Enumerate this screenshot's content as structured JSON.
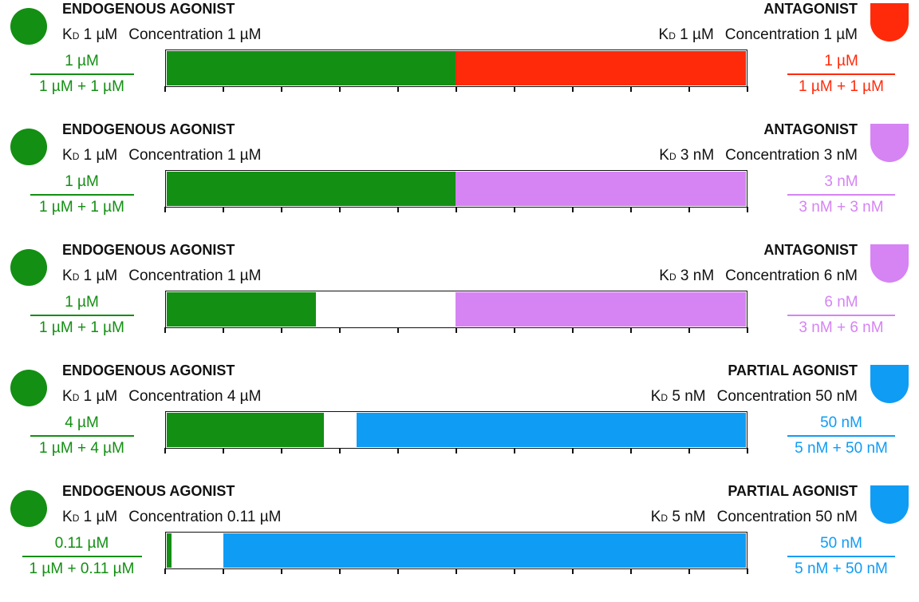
{
  "colors": {
    "agonist": "#138f13",
    "antagonist_red": "#ff2a0a",
    "antagonist_violet": "#d683f4",
    "partial": "#0f9cf5",
    "axis": "#111111"
  },
  "axis_ticks": 10,
  "panels": [
    {
      "left": {
        "title": "ENDOGENOUS AGONIST",
        "kd_prefix": "K",
        "kd_sub": "D",
        "kd_value": "1 µM",
        "concentration": "Concentration 1 µM",
        "frac_num": "1 µM",
        "frac_den": "1 µM + 1 µM",
        "occupancy": 0.5,
        "color": "agonist",
        "icon": "green-circle-icon"
      },
      "right": {
        "title": "ANTAGONIST",
        "kd_prefix": "K",
        "kd_sub": "D",
        "kd_value": "1 µM",
        "concentration": "Concentration 1 µM",
        "frac_num": "1 µM",
        "frac_den": "1 µM + 1 µM",
        "occupancy": 0.5,
        "color": "antagonist_red",
        "icon": "red-shield-icon"
      }
    },
    {
      "left": {
        "title": "ENDOGENOUS AGONIST",
        "kd_prefix": "K",
        "kd_sub": "D",
        "kd_value": "1 µM",
        "concentration": "Concentration 1 µM",
        "frac_num": "1 µM",
        "frac_den": "1 µM + 1 µM",
        "occupancy": 0.5,
        "color": "agonist",
        "icon": "green-circle-icon"
      },
      "right": {
        "title": "ANTAGONIST",
        "kd_prefix": "K",
        "kd_sub": "D",
        "kd_value": "3 nM",
        "concentration": "Concentration 3 nM",
        "frac_num": "3 nM",
        "frac_den": "3 nM + 3 nM",
        "occupancy": 0.5,
        "color": "antagonist_violet",
        "icon": "violet-shield-icon"
      }
    },
    {
      "left": {
        "title": "ENDOGENOUS AGONIST",
        "kd_prefix": "K",
        "kd_sub": "D",
        "kd_value": "1 µM",
        "concentration": "Concentration 1 µM",
        "frac_num": "1 µM",
        "frac_den": "1 µM + 1 µM",
        "occupancy": 0.257,
        "color": "agonist",
        "icon": "green-circle-icon"
      },
      "right": {
        "title": "ANTAGONIST",
        "kd_prefix": "K",
        "kd_sub": "D",
        "kd_value": "3 nM",
        "concentration": "Concentration 6 nM",
        "frac_num": "6 nM",
        "frac_den": "3 nM + 6 nM",
        "occupancy": 0.5,
        "color": "antagonist_violet",
        "icon": "violet-shield-icon"
      }
    },
    {
      "left": {
        "title": "ENDOGENOUS AGONIST",
        "kd_prefix": "K",
        "kd_sub": "D",
        "kd_value": "1 µM",
        "concentration": "Concentration 4 µM",
        "frac_num": "4 µM",
        "frac_den": "1 µM + 4 µM",
        "occupancy": 0.27,
        "color": "agonist",
        "icon": "green-circle-icon"
      },
      "right": {
        "title": "PARTIAL AGONIST",
        "kd_prefix": "K",
        "kd_sub": "D",
        "kd_value": "5 nM",
        "concentration": "Concentration 50 nM",
        "frac_num": "50 nM",
        "frac_den": "5 nM + 50 nM",
        "occupancy": 0.67,
        "color": "partial",
        "icon": "blue-shield-icon"
      }
    },
    {
      "left": {
        "title": "ENDOGENOUS AGONIST",
        "kd_prefix": "K",
        "kd_sub": "D",
        "kd_value": "1 µM",
        "concentration": "Concentration 0.11 µM",
        "frac_num": "0.11 µM",
        "frac_den": "1 µM + 0.11 µM",
        "occupancy": 0.008,
        "color": "agonist",
        "icon": "green-circle-icon"
      },
      "right": {
        "title": "PARTIAL AGONIST",
        "kd_prefix": "K",
        "kd_sub": "D",
        "kd_value": "5 nM",
        "concentration": "Concentration 50 nM",
        "frac_num": "50 nM",
        "frac_den": "5 nM + 50 nM",
        "occupancy": 0.9,
        "color": "partial",
        "icon": "blue-shield-icon"
      }
    }
  ]
}
